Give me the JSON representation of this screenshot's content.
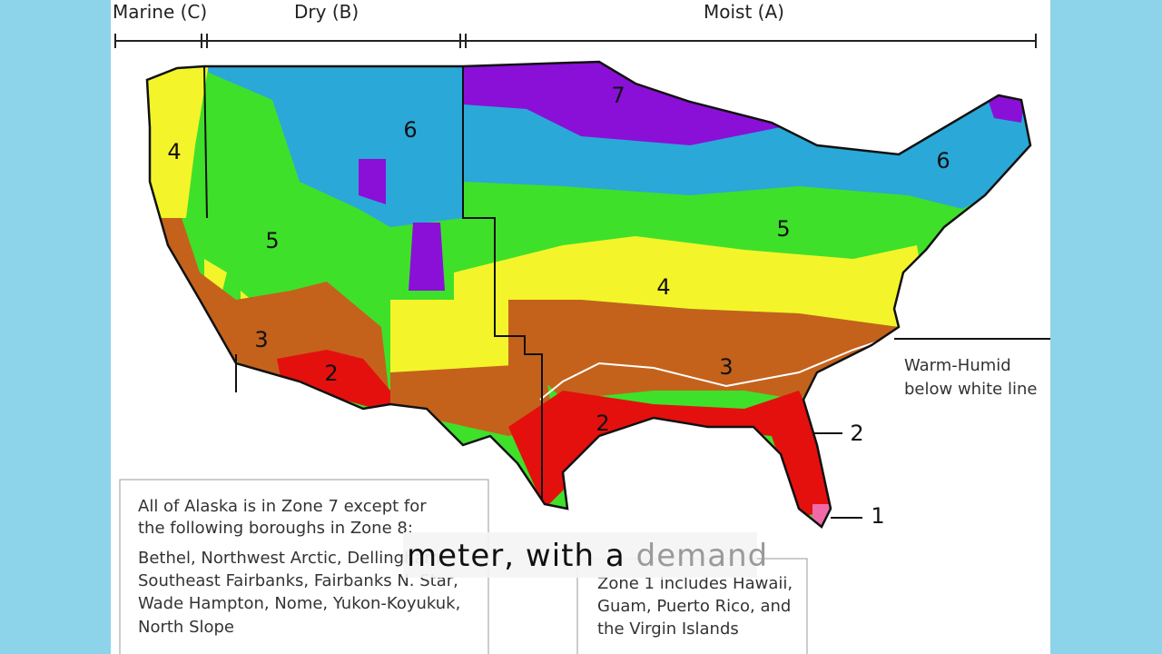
{
  "header": {
    "divisions": [
      "Marine (C)",
      "Dry (B)",
      "Moist (A)"
    ]
  },
  "map": {
    "zone_labels": [
      "7",
      "6",
      "6",
      "5",
      "5",
      "4",
      "4",
      "3",
      "3",
      "2",
      "2",
      "2",
      "1"
    ],
    "warm_humid_note": [
      "Warm-Humid",
      "below white line"
    ]
  },
  "alaska_note": [
    "All of Alaska is in Zone 7 except for",
    "the following boroughs in Zone 8:",
    "Bethel, Northwest Arctic, Dellingham,",
    "Southeast Fairbanks, Fairbanks N. Star,",
    "Wade Hampton, Nome, Yukon-Koyukuk,",
    "North Slope"
  ],
  "zone1_note": [
    "Zone 1 includes Hawaii,",
    "Guam, Puerto Rico, and",
    "the Virgin Islands"
  ],
  "caption": {
    "spoken": "meter, with a",
    "upcoming": "demand"
  }
}
